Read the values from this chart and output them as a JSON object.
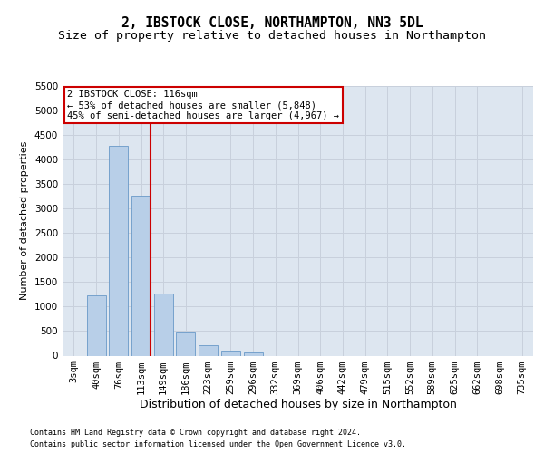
{
  "title": "2, IBSTOCK CLOSE, NORTHAMPTON, NN3 5DL",
  "subtitle": "Size of property relative to detached houses in Northampton",
  "xlabel": "Distribution of detached houses by size in Northampton",
  "ylabel": "Number of detached properties",
  "footnote1": "Contains HM Land Registry data © Crown copyright and database right 2024.",
  "footnote2": "Contains public sector information licensed under the Open Government Licence v3.0.",
  "categories": [
    "3sqm",
    "40sqm",
    "76sqm",
    "113sqm",
    "149sqm",
    "186sqm",
    "223sqm",
    "259sqm",
    "296sqm",
    "332sqm",
    "369sqm",
    "406sqm",
    "442sqm",
    "479sqm",
    "515sqm",
    "552sqm",
    "589sqm",
    "625sqm",
    "662sqm",
    "698sqm",
    "735sqm"
  ],
  "values": [
    0,
    1230,
    4280,
    3270,
    1270,
    490,
    210,
    100,
    70,
    0,
    0,
    0,
    0,
    0,
    0,
    0,
    0,
    0,
    0,
    0,
    0
  ],
  "bar_color": "#b8cfe8",
  "bar_edge_color": "#6899c8",
  "highlight_line_color": "#cc0000",
  "highlight_bar_index": 3,
  "annotation_text": "2 IBSTOCK CLOSE: 116sqm\n← 53% of detached houses are smaller (5,848)\n45% of semi-detached houses are larger (4,967) →",
  "annotation_box_color": "#cc0000",
  "ylim": [
    0,
    5500
  ],
  "yticks": [
    0,
    500,
    1000,
    1500,
    2000,
    2500,
    3000,
    3500,
    4000,
    4500,
    5000,
    5500
  ],
  "grid_color": "#c8d0dc",
  "bg_color": "#dde6f0",
  "title_fontsize": 10.5,
  "subtitle_fontsize": 9.5,
  "ylabel_fontsize": 8,
  "xlabel_fontsize": 9,
  "tick_fontsize": 7.5,
  "annot_fontsize": 7.5,
  "footnote_fontsize": 6.0
}
